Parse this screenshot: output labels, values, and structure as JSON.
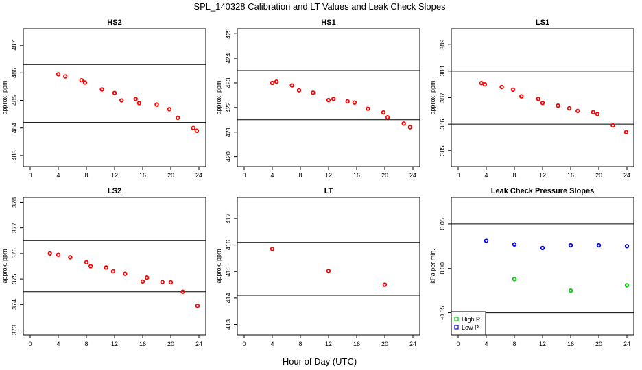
{
  "figure": {
    "title": "SPL_140328  Calibration and LT Values and Leak Check Slopes",
    "xlabel": "Hour of Day (UTC)"
  },
  "chart_data": [
    {
      "type": "scatter",
      "title": "HS2",
      "ylabel": "approx. ppm",
      "xlim": [
        0,
        24
      ],
      "ylim": [
        482.6,
        487.6
      ],
      "xticks": [
        "0",
        "4",
        "8",
        "12",
        "16",
        "20",
        "24"
      ],
      "yticks": [
        "483",
        "484",
        "485",
        "486",
        "487"
      ],
      "ref_lines": [
        486.3,
        484.2
      ],
      "series": [
        {
          "color": "#ff0000",
          "marker": "circle",
          "x": [
            4,
            5,
            7.3,
            7.8,
            10.2,
            12,
            13,
            15,
            15.5,
            18,
            19.8,
            21,
            23.2,
            23.7
          ],
          "y": [
            485.95,
            485.87,
            485.73,
            485.65,
            485.4,
            485.27,
            485.0,
            485.05,
            484.9,
            484.85,
            484.68,
            484.37,
            484.0,
            483.9
          ]
        }
      ]
    },
    {
      "type": "scatter",
      "title": "HS1",
      "ylabel": "approx. ppm",
      "xlim": [
        0,
        24
      ],
      "ylim": [
        419.6,
        425.2
      ],
      "xticks": [
        "0",
        "4",
        "8",
        "12",
        "16",
        "20",
        "24"
      ],
      "yticks": [
        "420",
        "421",
        "422",
        "423",
        "424",
        "425"
      ],
      "ref_lines": [
        423.5,
        421.5
      ],
      "series": [
        {
          "color": "#ff0000",
          "marker": "circle",
          "x": [
            4,
            4.6,
            6.8,
            7.8,
            9.8,
            12,
            12.7,
            14.7,
            15.7,
            17.6,
            19.8,
            20.4,
            22.7,
            23.6
          ],
          "y": [
            423.0,
            423.05,
            422.9,
            422.7,
            422.6,
            422.3,
            422.35,
            422.25,
            422.2,
            421.95,
            421.8,
            421.6,
            421.35,
            421.2
          ]
        }
      ]
    },
    {
      "type": "scatter",
      "title": "LS1",
      "ylabel": "approx. ppm",
      "xlim": [
        0,
        24
      ],
      "ylim": [
        384.4,
        389.6
      ],
      "xticks": [
        "0",
        "4",
        "8",
        "12",
        "16",
        "20",
        "24"
      ],
      "yticks": [
        "385",
        "386",
        "387",
        "388",
        "389"
      ],
      "ref_lines": [
        388.0,
        386.0
      ],
      "series": [
        {
          "color": "#ff0000",
          "marker": "circle",
          "x": [
            3.3,
            3.8,
            6.2,
            7.8,
            9,
            11.4,
            12,
            14.2,
            15.8,
            17,
            19.2,
            19.8,
            22,
            23.9
          ],
          "y": [
            387.55,
            387.5,
            387.4,
            387.3,
            387.05,
            386.95,
            386.8,
            386.7,
            386.6,
            386.5,
            386.45,
            386.38,
            385.95,
            385.7
          ]
        }
      ]
    },
    {
      "type": "scatter",
      "title": "LS2",
      "ylabel": "approx. ppm",
      "xlim": [
        0,
        24
      ],
      "ylim": [
        372.8,
        378.2
      ],
      "xticks": [
        "0",
        "4",
        "8",
        "12",
        "16",
        "20",
        "24"
      ],
      "yticks": [
        "373",
        "374",
        "375",
        "376",
        "377",
        "378"
      ],
      "ref_lines": [
        376.5,
        374.5
      ],
      "series": [
        {
          "color": "#ff0000",
          "marker": "circle",
          "x": [
            2.8,
            4,
            5.7,
            8,
            8.6,
            10.8,
            11.8,
            13.5,
            16,
            16.6,
            18.8,
            20,
            21.7,
            23.8
          ],
          "y": [
            376.0,
            375.95,
            375.85,
            375.65,
            375.5,
            375.45,
            375.3,
            375.2,
            374.9,
            375.05,
            374.88,
            374.87,
            374.5,
            373.95
          ]
        }
      ]
    },
    {
      "type": "scatter",
      "title": "LT",
      "ylabel": "approx. ppm",
      "xlim": [
        0,
        24
      ],
      "ylim": [
        412.6,
        417.8
      ],
      "xticks": [
        "0",
        "4",
        "8",
        "12",
        "16",
        "20",
        "24"
      ],
      "yticks": [
        "413",
        "414",
        "415",
        "416",
        "417"
      ],
      "ref_lines": [
        416.1,
        414.1
      ],
      "series": [
        {
          "color": "#ff0000",
          "marker": "circle",
          "x": [
            4,
            12,
            20
          ],
          "y": [
            415.85,
            415.02,
            414.5
          ]
        }
      ]
    },
    {
      "type": "scatter",
      "title": "Leak Check Pressure Slopes",
      "ylabel": "kPa per min.",
      "xlim": [
        0,
        24
      ],
      "ylim": [
        -0.075,
        0.08
      ],
      "xticks": [
        "0",
        "4",
        "8",
        "12",
        "16",
        "20",
        "24"
      ],
      "yticks": [
        "-0.05",
        "0.00",
        "0.05"
      ],
      "ytick_values": [
        -0.05,
        0.0,
        0.05
      ],
      "ref_lines": [
        0.05,
        -0.05
      ],
      "legend": {
        "position": "bottom-left"
      },
      "series": [
        {
          "name": "High P",
          "color": "#00cc00",
          "marker": "circle",
          "x": [
            8,
            16,
            24
          ],
          "y": [
            -0.012,
            -0.025,
            -0.019
          ]
        },
        {
          "name": "Low P",
          "color": "#0000ff",
          "marker": "circle",
          "x": [
            4,
            8,
            12,
            16,
            20,
            24
          ],
          "y": [
            0.031,
            0.027,
            0.023,
            0.026,
            0.026,
            0.025
          ]
        }
      ]
    }
  ]
}
